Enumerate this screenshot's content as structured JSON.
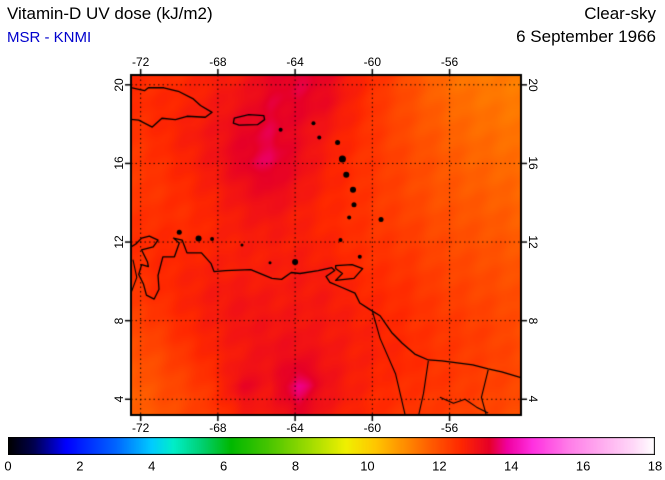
{
  "header": {
    "title": "Vitamin-D UV dose (kJ/m2)",
    "source": "MSR - KNMI",
    "source_color": "#0000cc",
    "condition": "Clear-sky",
    "date": "6 September 1966",
    "text_color": "#000000"
  },
  "chart_data": {
    "type": "heatmap",
    "title": "Vitamin-D UV dose (kJ/m2)",
    "unit": "kJ/m2",
    "lon_range": [
      -72.5,
      -52.3
    ],
    "lat_range": [
      3.2,
      20.5
    ],
    "x_ticks": [
      -72,
      -68,
      -64,
      -60,
      -56
    ],
    "y_ticks": [
      20,
      16,
      12,
      8,
      4
    ],
    "grid_lines": "dotted",
    "grid": {
      "nx": 15,
      "ny": 13,
      "values": [
        [
          12.6,
          12.5,
          12.6,
          12.8,
          12.9,
          13.3,
          13.5,
          13.3,
          12.8,
          12.4,
          12.0,
          11.6,
          11.4,
          11.3,
          11.3
        ],
        [
          12.5,
          12.6,
          12.7,
          12.9,
          13.1,
          13.4,
          13.4,
          13.2,
          12.7,
          12.3,
          12.0,
          11.7,
          11.5,
          11.4,
          11.3
        ],
        [
          12.4,
          12.6,
          12.8,
          13.0,
          13.3,
          13.5,
          13.2,
          12.9,
          12.6,
          12.3,
          12.0,
          11.8,
          11.6,
          11.5,
          11.4
        ],
        [
          12.3,
          12.5,
          12.7,
          13.0,
          13.4,
          13.6,
          13.2,
          12.8,
          12.5,
          12.3,
          12.1,
          11.9,
          11.7,
          11.6,
          11.5
        ],
        [
          12.3,
          12.4,
          12.6,
          12.8,
          13.1,
          13.3,
          13.0,
          12.7,
          12.5,
          12.3,
          12.1,
          11.9,
          11.8,
          11.7,
          11.6
        ],
        [
          12.4,
          12.5,
          12.5,
          12.7,
          12.9,
          13.0,
          12.8,
          12.6,
          12.5,
          12.3,
          12.2,
          12.0,
          11.9,
          11.8,
          11.7
        ],
        [
          12.5,
          12.6,
          12.6,
          12.7,
          12.8,
          12.8,
          12.8,
          12.7,
          12.5,
          12.4,
          12.3,
          12.1,
          12.0,
          11.9,
          11.8
        ],
        [
          12.4,
          12.6,
          12.7,
          12.8,
          12.8,
          12.8,
          12.9,
          12.8,
          12.6,
          12.5,
          12.4,
          12.2,
          12.1,
          12.0,
          11.9
        ],
        [
          12.3,
          12.5,
          12.7,
          12.9,
          13.0,
          12.9,
          12.9,
          12.9,
          12.7,
          12.6,
          12.5,
          12.3,
          12.2,
          12.1,
          12.0
        ],
        [
          12.1,
          12.3,
          12.6,
          12.8,
          13.0,
          13.0,
          13.0,
          12.9,
          12.8,
          12.7,
          12.5,
          12.4,
          12.3,
          12.2,
          12.0
        ],
        [
          11.9,
          12.1,
          12.4,
          12.7,
          12.9,
          13.1,
          13.2,
          13.0,
          12.8,
          12.7,
          12.6,
          12.4,
          12.3,
          12.2,
          12.1
        ],
        [
          11.7,
          12.0,
          12.2,
          12.5,
          13.3,
          13.0,
          13.8,
          13.1,
          12.8,
          12.6,
          12.5,
          12.4,
          12.3,
          12.2,
          12.1
        ],
        [
          11.6,
          11.9,
          12.1,
          12.4,
          12.8,
          12.9,
          13.3,
          12.9,
          12.7,
          12.5,
          12.4,
          12.3,
          12.2,
          12.1,
          12.0
        ]
      ]
    },
    "colorbar": {
      "min": 0,
      "max": 18,
      "ticks": [
        0,
        2,
        4,
        6,
        8,
        10,
        12,
        14,
        16,
        18
      ]
    },
    "colormap_stops": [
      [
        0.0,
        "#000000"
      ],
      [
        0.7,
        "#00004d"
      ],
      [
        1.6,
        "#0000ff"
      ],
      [
        3.0,
        "#0066ff"
      ],
      [
        4.0,
        "#00ccff"
      ],
      [
        4.6,
        "#00eec8"
      ],
      [
        5.4,
        "#00d070"
      ],
      [
        6.2,
        "#00b800"
      ],
      [
        7.2,
        "#44c400"
      ],
      [
        8.4,
        "#a0dc00"
      ],
      [
        9.4,
        "#f0f000"
      ],
      [
        10.2,
        "#ffc800"
      ],
      [
        11.0,
        "#ff9000"
      ],
      [
        11.8,
        "#ff5a00"
      ],
      [
        12.6,
        "#ff2800"
      ],
      [
        13.4,
        "#e60028"
      ],
      [
        13.9,
        "#f000a0"
      ],
      [
        14.6,
        "#ff30e0"
      ],
      [
        15.6,
        "#ff7ce8"
      ],
      [
        16.6,
        "#ffb0f0"
      ],
      [
        17.4,
        "#ffd8f8"
      ],
      [
        18.0,
        "#ffffff"
      ]
    ]
  },
  "map_features": {
    "coastlines": [
      {
        "name": "hispaniola",
        "closed": true,
        "points": [
          [
            -74.3,
            18.65
          ],
          [
            -73.6,
            19.65
          ],
          [
            -72.7,
            19.9
          ],
          [
            -71.8,
            19.7
          ],
          [
            -71.6,
            19.85
          ],
          [
            -70.8,
            19.85
          ],
          [
            -70.0,
            19.65
          ],
          [
            -69.3,
            19.3
          ],
          [
            -68.9,
            18.95
          ],
          [
            -68.3,
            18.6
          ],
          [
            -68.65,
            18.35
          ],
          [
            -69.6,
            18.4
          ],
          [
            -70.2,
            18.23
          ],
          [
            -70.9,
            18.3
          ],
          [
            -71.4,
            17.85
          ],
          [
            -72.1,
            18.2
          ],
          [
            -73.0,
            18.3
          ],
          [
            -73.75,
            18.15
          ]
        ]
      },
      {
        "name": "puerto-rico",
        "closed": true,
        "points": [
          [
            -67.15,
            18.3
          ],
          [
            -66.4,
            18.48
          ],
          [
            -65.62,
            18.43
          ],
          [
            -65.58,
            18.23
          ],
          [
            -65.95,
            17.97
          ],
          [
            -66.9,
            17.95
          ],
          [
            -67.2,
            18.05
          ]
        ]
      },
      {
        "name": "trinidad",
        "closed": true,
        "points": [
          [
            -61.9,
            10.8
          ],
          [
            -61.05,
            10.85
          ],
          [
            -60.5,
            10.65
          ],
          [
            -60.95,
            10.15
          ],
          [
            -61.9,
            10.05
          ],
          [
            -61.55,
            10.4
          ],
          [
            -61.9,
            10.65
          ]
        ]
      },
      {
        "name": "south-america-coast",
        "closed": false,
        "points": [
          [
            -72.5,
            11.75
          ],
          [
            -72.25,
            11.9
          ],
          [
            -71.95,
            12.2
          ],
          [
            -71.55,
            12.3
          ],
          [
            -71.1,
            12.1
          ],
          [
            -71.35,
            11.75
          ],
          [
            -71.95,
            11.6
          ],
          [
            -71.65,
            11.0
          ],
          [
            -71.6,
            10.75
          ],
          [
            -71.95,
            10.85
          ],
          [
            -72.1,
            10.35
          ],
          [
            -71.85,
            9.85
          ],
          [
            -71.7,
            9.3
          ],
          [
            -71.3,
            9.1
          ],
          [
            -71.05,
            9.6
          ],
          [
            -71.1,
            10.3
          ],
          [
            -70.85,
            11.25
          ],
          [
            -70.25,
            11.25
          ],
          [
            -70.0,
            11.95
          ],
          [
            -70.3,
            12.2
          ],
          [
            -69.85,
            12.1
          ],
          [
            -69.6,
            11.45
          ],
          [
            -68.85,
            11.45
          ],
          [
            -68.35,
            10.9
          ],
          [
            -68.2,
            10.5
          ],
          [
            -67.6,
            10.55
          ],
          [
            -66.3,
            10.6
          ],
          [
            -65.2,
            10.15
          ],
          [
            -64.7,
            10.1
          ],
          [
            -64.2,
            10.45
          ],
          [
            -63.75,
            10.4
          ],
          [
            -62.8,
            10.55
          ],
          [
            -62.1,
            10.7
          ],
          [
            -61.95,
            10.55
          ],
          [
            -62.4,
            10.25
          ],
          [
            -62.2,
            9.95
          ],
          [
            -61.6,
            9.7
          ],
          [
            -60.9,
            9.4
          ],
          [
            -60.65,
            8.9
          ],
          [
            -60.1,
            8.55
          ],
          [
            -59.6,
            8.25
          ],
          [
            -59.0,
            7.4
          ],
          [
            -58.45,
            6.85
          ],
          [
            -57.8,
            6.3
          ],
          [
            -57.1,
            6.0
          ],
          [
            -56.4,
            5.95
          ],
          [
            -55.6,
            5.85
          ],
          [
            -54.8,
            5.75
          ],
          [
            -54.0,
            5.55
          ],
          [
            -53.3,
            5.4
          ],
          [
            -52.3,
            5.1
          ]
        ]
      }
    ],
    "borders": [
      {
        "name": "colombia-venezuela",
        "points": [
          [
            -72.4,
            11.1
          ],
          [
            -72.2,
            10.2
          ],
          [
            -72.5,
            9.4
          ]
        ]
      },
      {
        "name": "venezuela-guyana",
        "points": [
          [
            -60.0,
            8.5
          ],
          [
            -59.6,
            7.1
          ],
          [
            -58.8,
            5.3
          ],
          [
            -58.3,
            3.2
          ]
        ]
      },
      {
        "name": "guyana-suriname",
        "points": [
          [
            -57.1,
            5.95
          ],
          [
            -57.35,
            4.3
          ],
          [
            -57.6,
            3.2
          ]
        ]
      },
      {
        "name": "suriname-french-guiana",
        "points": [
          [
            -54.0,
            5.5
          ],
          [
            -54.35,
            4.1
          ],
          [
            -54.1,
            3.2
          ]
        ]
      },
      {
        "name": "suriname-brazil",
        "points": [
          [
            -56.5,
            4.1
          ],
          [
            -55.8,
            3.8
          ],
          [
            -55.2,
            4.0
          ],
          [
            -54.6,
            3.6
          ],
          [
            -54.0,
            3.3
          ]
        ]
      }
    ],
    "islands": [
      [
        -70.0,
        12.5,
        2.5
      ],
      [
        -69.0,
        12.18,
        3
      ],
      [
        -68.3,
        12.15,
        2
      ],
      [
        -66.75,
        11.85,
        1.5
      ],
      [
        -65.3,
        10.95,
        1.5
      ],
      [
        -64.0,
        10.98,
        3
      ],
      [
        -64.75,
        17.72,
        2
      ],
      [
        -63.05,
        18.05,
        2
      ],
      [
        -62.75,
        17.32,
        2
      ],
      [
        -61.8,
        17.07,
        2.5
      ],
      [
        -61.55,
        16.22,
        3.5
      ],
      [
        -61.35,
        15.42,
        3
      ],
      [
        -61.0,
        14.66,
        3
      ],
      [
        -60.95,
        13.9,
        2.5
      ],
      [
        -61.2,
        13.25,
        2
      ],
      [
        -59.55,
        13.15,
        2.5
      ],
      [
        -61.65,
        12.1,
        2
      ],
      [
        -60.65,
        11.25,
        2
      ]
    ]
  }
}
